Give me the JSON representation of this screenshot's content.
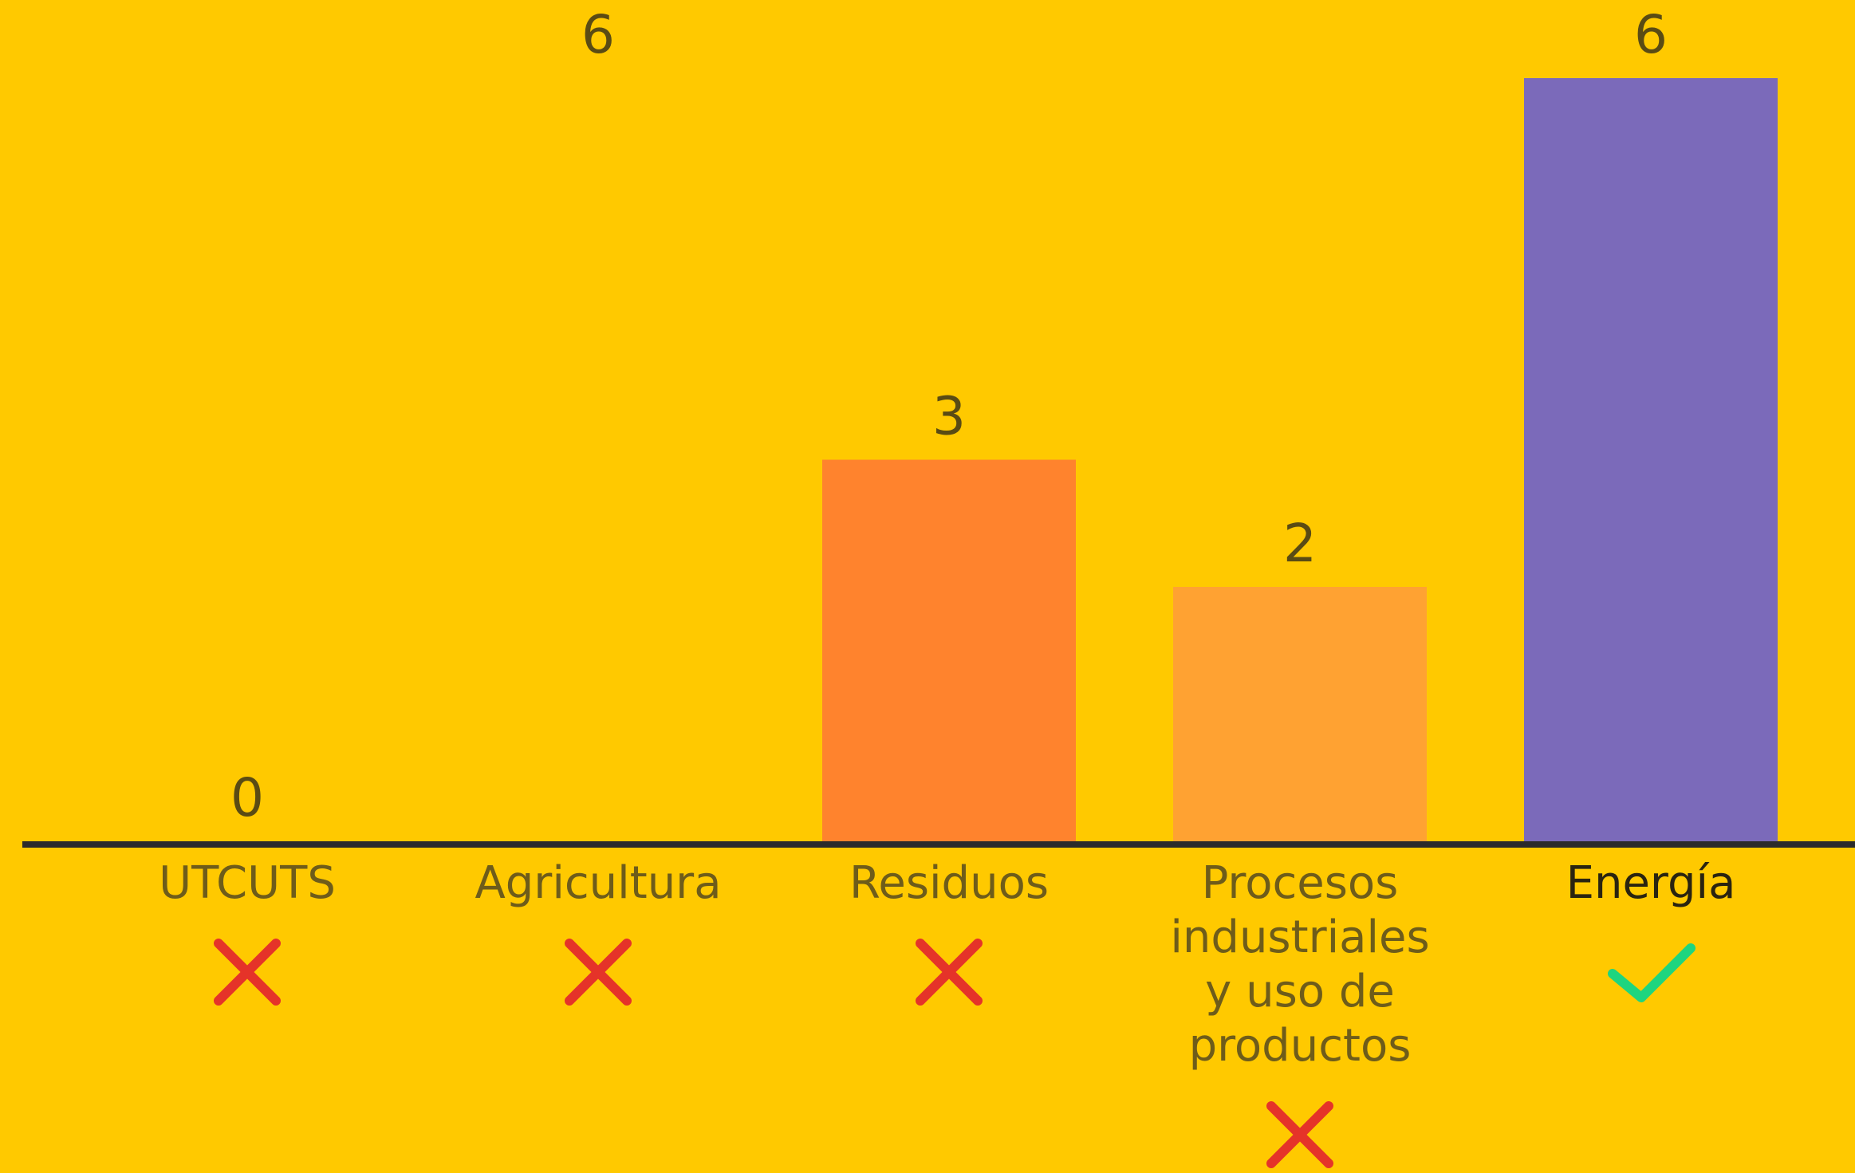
{
  "chart_data": {
    "type": "bar",
    "categories": [
      "UTCUTS",
      "Agricultura",
      "Residuos",
      "Procesos industriales y uso de productos",
      "Energía"
    ],
    "category_lines": [
      [
        "UTCUTS"
      ],
      [
        "Agricultura"
      ],
      [
        "Residuos"
      ],
      [
        "Procesos",
        "industriales",
        "y uso de",
        "productos"
      ],
      [
        "Energía"
      ]
    ],
    "values": [
      0,
      6,
      3,
      2,
      6
    ],
    "value_labels": [
      "0",
      "6",
      "3",
      "2",
      "6"
    ],
    "bar_colors": [
      "#FFC900",
      "#FFC900",
      "#FF832D",
      "#FFA232",
      "#7B6ABA"
    ],
    "status": [
      "cross",
      "cross",
      "cross",
      "cross",
      "check"
    ],
    "status_colors": {
      "cross": "#E53329",
      "check": "#1ED57F"
    },
    "highlighted_category": "Energía",
    "title": "",
    "xlabel": "",
    "ylabel": "",
    "ylim": [
      0,
      6
    ],
    "grid": false,
    "legend": "none"
  },
  "colors": {
    "background": "#FFC900",
    "axis": "#2b2b2b",
    "value_text": "#5a4b14",
    "category_text": "#6e5c1a"
  }
}
